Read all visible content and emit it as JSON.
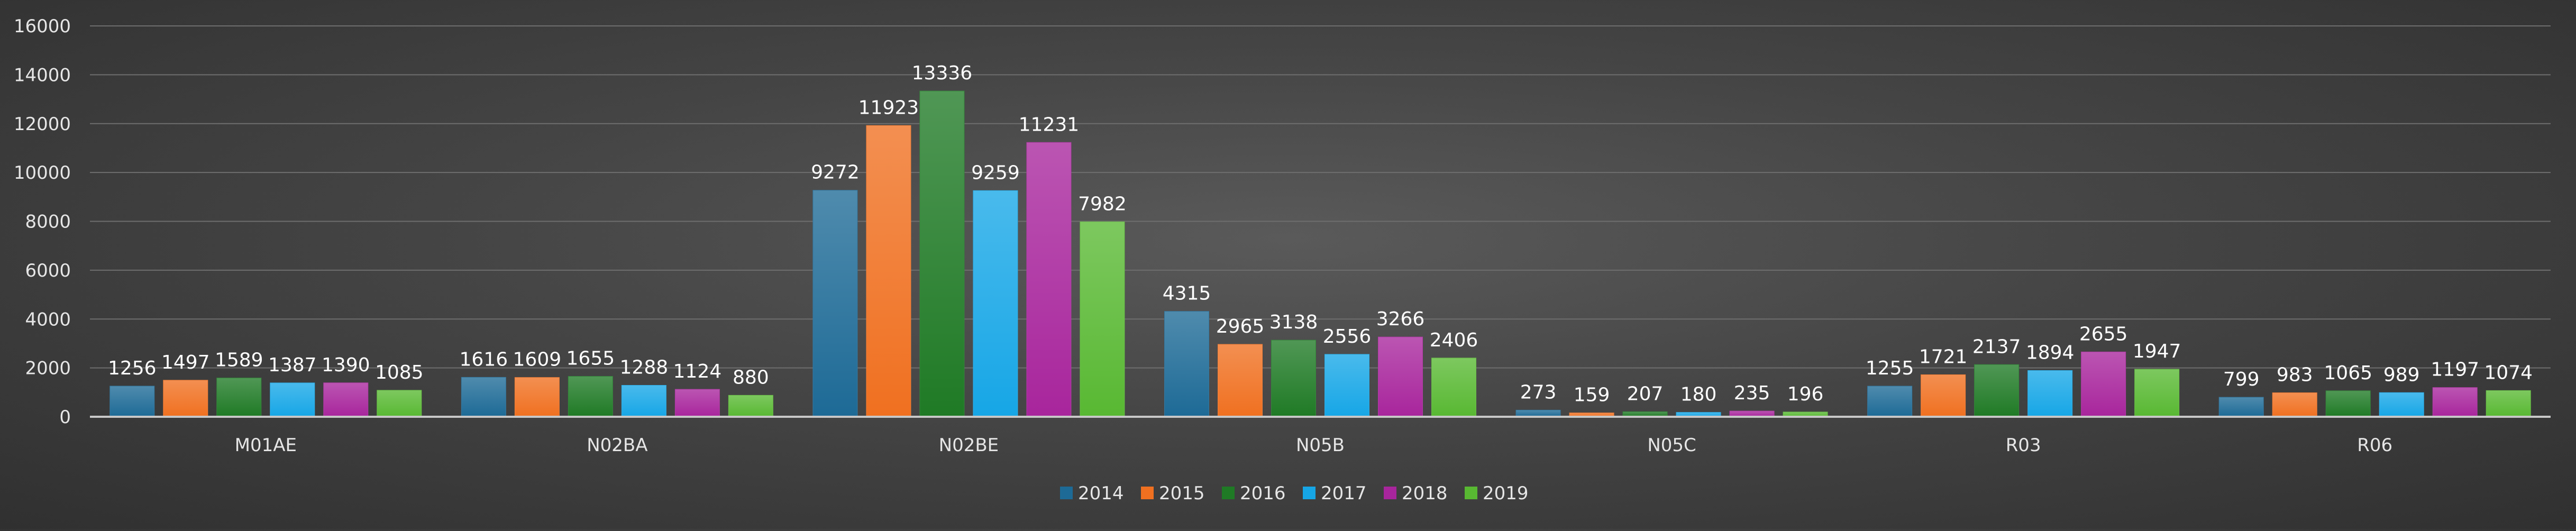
{
  "chart_data": {
    "type": "bar",
    "title": "",
    "xlabel": "",
    "ylabel": "",
    "ylim": [
      0,
      16000
    ],
    "yticks": [
      0,
      2000,
      4000,
      6000,
      8000,
      10000,
      12000,
      14000,
      16000
    ],
    "grid": true,
    "legend_position": "bottom",
    "data_labels": true,
    "categories": [
      "M01AE",
      "N02BA",
      "N02BE",
      "N05B",
      "N05C",
      "R03",
      "R06"
    ],
    "series": [
      {
        "name": "2014",
        "color": "#1d6a96",
        "values": [
          1256,
          1616,
          9272,
          4315,
          273,
          1255,
          799
        ]
      },
      {
        "name": "2015",
        "color": "#f07020",
        "values": [
          1497,
          1609,
          11923,
          2965,
          159,
          1721,
          983
        ]
      },
      {
        "name": "2016",
        "color": "#1f7a25",
        "values": [
          1589,
          1655,
          13336,
          3138,
          207,
          2137,
          1065
        ]
      },
      {
        "name": "2017",
        "color": "#16a6e6",
        "values": [
          1387,
          1288,
          9259,
          2556,
          180,
          1894,
          989
        ]
      },
      {
        "name": "2018",
        "color": "#a8259c",
        "values": [
          1390,
          1124,
          11231,
          3266,
          235,
          2655,
          1197
        ]
      },
      {
        "name": "2019",
        "color": "#58b832",
        "values": [
          1085,
          880,
          7982,
          2406,
          196,
          1947,
          1074
        ]
      }
    ]
  }
}
